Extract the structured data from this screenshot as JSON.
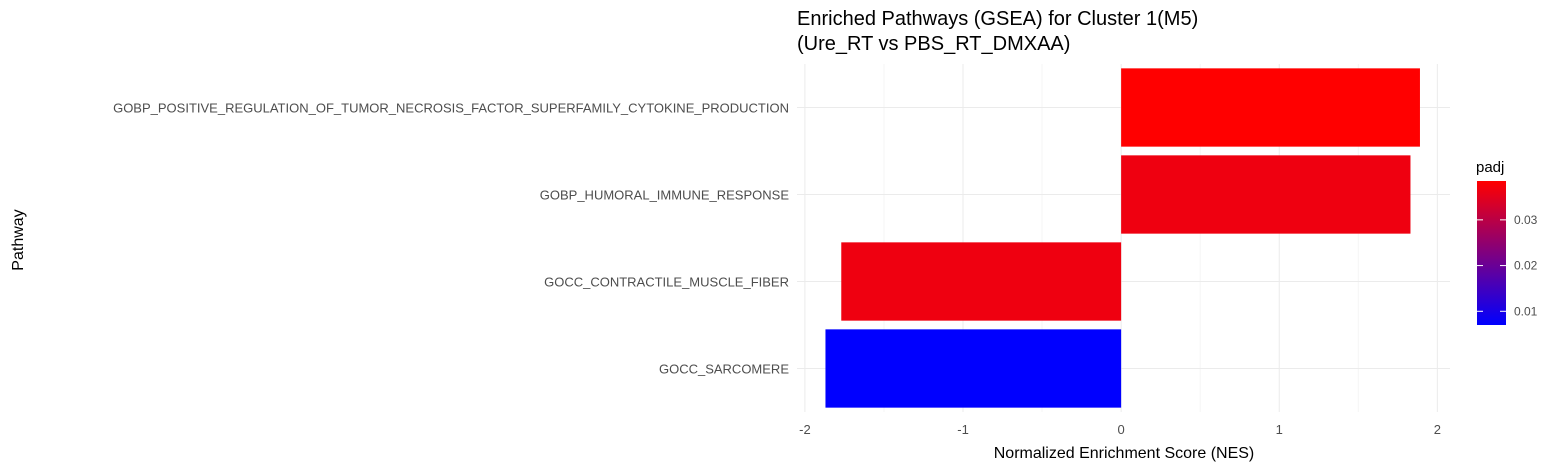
{
  "chart_data": {
    "type": "bar",
    "orientation": "horizontal",
    "title_lines": [
      "Enriched Pathways (GSEA) for Cluster 1(M5)",
      "(Ure_RT vs PBS_RT_DMXAA)"
    ],
    "xlabel": "Normalized Enrichment Score (NES)",
    "ylabel": "Pathway",
    "categories": [
      "GOBP_POSITIVE_REGULATION_OF_TUMOR_NECROSIS_FACTOR_SUPERFAMILY_CYTOKINE_PRODUCTION",
      "GOBP_HUMORAL_IMMUNE_RESPONSE",
      "GOCC_CONTRACTILE_MUSCLE_FIBER",
      "GOCC_SARCOMERE"
    ],
    "values": [
      1.89,
      1.83,
      -1.77,
      -1.87
    ],
    "padj": [
      0.0385,
      0.0365,
      0.0365,
      0.007
    ],
    "xlim": [
      -2.05,
      2.08
    ],
    "xticks": [
      -2,
      -1,
      0,
      1,
      2
    ],
    "xtick_labels": [
      "-2",
      "-1",
      "0",
      "1",
      "2"
    ],
    "grid": true,
    "legend": {
      "title": "padj",
      "placement": "right",
      "range": [
        0.007,
        0.0385
      ],
      "ticks": [
        0.01,
        0.02,
        0.03
      ],
      "tick_labels": [
        "0.01",
        "0.02",
        "0.03"
      ],
      "low_color": "#0000FF",
      "high_color": "#FF0000"
    }
  }
}
